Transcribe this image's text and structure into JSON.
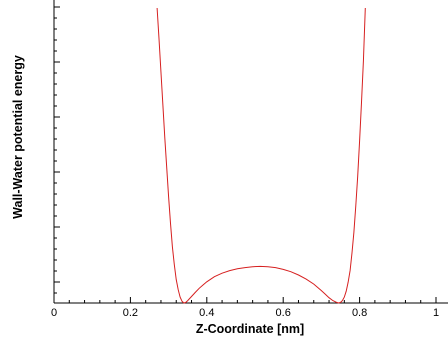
{
  "chart_data": {
    "type": "line",
    "title": "",
    "xlabel": "Z-Coordinate [nm]",
    "ylabel": "Wall-Water potential energy",
    "xlim": [
      0,
      1
    ],
    "ylim": [
      0,
      1
    ],
    "x_ticks": [
      "0",
      "0.2",
      "0.4",
      "0.6",
      "0.8",
      "1"
    ],
    "x_tick_values": [
      0,
      0.2,
      0.4,
      0.6,
      0.8,
      1
    ],
    "y_ticks": [],
    "grid": false,
    "line_color": "#d62020",
    "series": [
      {
        "x": [
          0.27,
          0.275,
          0.28,
          0.285,
          0.29,
          0.295,
          0.3,
          0.305,
          0.31,
          0.315,
          0.32,
          0.325,
          0.33,
          0.335,
          0.34,
          0.345,
          0.35,
          0.36,
          0.37,
          0.38,
          0.39,
          0.4,
          0.42,
          0.44,
          0.46,
          0.48,
          0.5,
          0.52,
          0.54,
          0.56,
          0.58,
          0.6,
          0.62,
          0.64,
          0.66,
          0.68,
          0.7,
          0.71,
          0.72,
          0.73,
          0.74,
          0.745,
          0.75,
          0.755,
          0.76,
          0.765,
          0.77,
          0.775,
          0.78,
          0.785,
          0.79,
          0.795,
          0.8,
          0.805,
          0.81,
          0.815
        ],
        "y": [
          1.0,
          0.89,
          0.78,
          0.67,
          0.56,
          0.46,
          0.36,
          0.27,
          0.19,
          0.13,
          0.08,
          0.045,
          0.02,
          0.006,
          0.0,
          0.002,
          0.008,
          0.022,
          0.036,
          0.05,
          0.061,
          0.072,
          0.089,
          0.101,
          0.11,
          0.116,
          0.12,
          0.123,
          0.124,
          0.123,
          0.12,
          0.114,
          0.106,
          0.095,
          0.081,
          0.064,
          0.042,
          0.03,
          0.018,
          0.008,
          0.002,
          0.0,
          0.002,
          0.008,
          0.02,
          0.04,
          0.07,
          0.11,
          0.17,
          0.24,
          0.33,
          0.43,
          0.55,
          0.68,
          0.82,
          1.0
        ]
      }
    ]
  }
}
